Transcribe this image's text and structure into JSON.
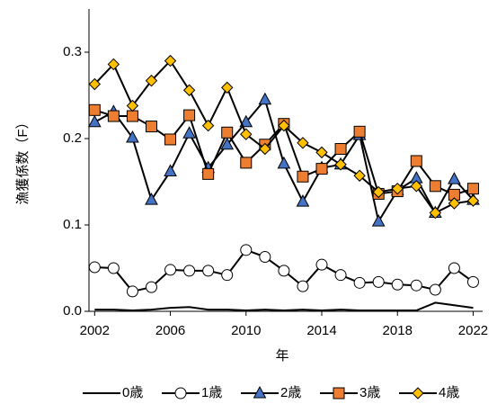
{
  "chart_data": {
    "type": "line",
    "y_label": "漁獲係数（F）",
    "x_label": "年",
    "x": [
      2002,
      2003,
      2004,
      2005,
      2006,
      2007,
      2008,
      2009,
      2010,
      2011,
      2012,
      2013,
      2014,
      2015,
      2016,
      2017,
      2018,
      2019,
      2020,
      2021,
      2022
    ],
    "line_color": "#000000",
    "series": [
      {
        "name": "0歳",
        "marker": "none",
        "color": "#000000",
        "values": [
          0.002,
          0.002,
          0.001,
          0.002,
          0.004,
          0.005,
          0.002,
          0.002,
          0.001,
          0.002,
          0.001,
          0.002,
          0.001,
          0.002,
          0.001,
          0.001,
          0.001,
          0.001,
          0.01,
          0.007,
          0.004
        ]
      },
      {
        "name": "1歳",
        "marker": "circle",
        "color": "#ffffff",
        "values": [
          0.051,
          0.05,
          0.023,
          0.028,
          0.048,
          0.047,
          0.047,
          0.042,
          0.071,
          0.063,
          0.047,
          0.029,
          0.054,
          0.042,
          0.033,
          0.034,
          0.031,
          0.03,
          0.025,
          0.05,
          0.034
        ]
      },
      {
        "name": "2歳",
        "marker": "triangle",
        "color": "#4472c4",
        "values": [
          0.219,
          0.231,
          0.201,
          0.129,
          0.162,
          0.206,
          0.166,
          0.193,
          0.219,
          0.245,
          0.171,
          0.127,
          0.166,
          0.17,
          0.204,
          0.104,
          0.14,
          0.154,
          0.114,
          0.153,
          0.129
        ]
      },
      {
        "name": "3歳",
        "marker": "square",
        "color": "#ed7d31",
        "values": [
          0.233,
          0.226,
          0.226,
          0.214,
          0.199,
          0.227,
          0.159,
          0.207,
          0.172,
          0.193,
          0.217,
          0.156,
          0.165,
          0.188,
          0.208,
          0.136,
          0.139,
          0.174,
          0.145,
          0.135,
          0.142
        ]
      },
      {
        "name": "4歳",
        "marker": "diamond",
        "color": "#ffc000",
        "values": [
          0.263,
          0.286,
          0.238,
          0.267,
          0.29,
          0.256,
          0.215,
          0.259,
          0.205,
          0.188,
          0.215,
          0.195,
          0.184,
          0.17,
          0.157,
          0.138,
          0.142,
          0.145,
          0.114,
          0.125,
          0.128
        ]
      }
    ],
    "xlim": [
      2001.7,
      2022.5
    ],
    "xticks": [
      2002,
      2006,
      2010,
      2014,
      2018,
      2022
    ],
    "ylim": [
      0,
      0.35
    ],
    "yticks": [
      {
        "value": 0,
        "label": "0.0"
      },
      0.1,
      0.2,
      0.3
    ],
    "grid": false,
    "legend": "bottom"
  }
}
